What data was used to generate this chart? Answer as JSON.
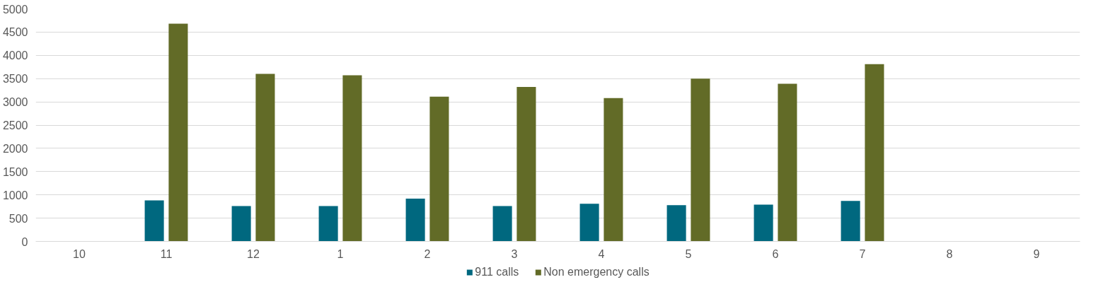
{
  "chart_data": {
    "type": "bar",
    "categories": [
      "10",
      "11",
      "12",
      "1",
      "2",
      "3",
      "4",
      "5",
      "6",
      "7",
      "8",
      "9"
    ],
    "series": [
      {
        "name": "911 calls",
        "color": "#00687f",
        "values": [
          null,
          880,
          760,
          760,
          920,
          760,
          810,
          780,
          790,
          870,
          null,
          null
        ]
      },
      {
        "name": "Non emergency calls",
        "color": "#626b27",
        "values": [
          null,
          4680,
          3600,
          3570,
          3110,
          3320,
          3080,
          3500,
          3390,
          3810,
          null,
          null
        ]
      }
    ],
    "ylim": [
      0,
      5000
    ],
    "yticks": [
      0,
      500,
      1000,
      1500,
      2000,
      2500,
      3000,
      3500,
      4000,
      4500,
      5000
    ],
    "grid": "y",
    "legend": "bottom"
  }
}
